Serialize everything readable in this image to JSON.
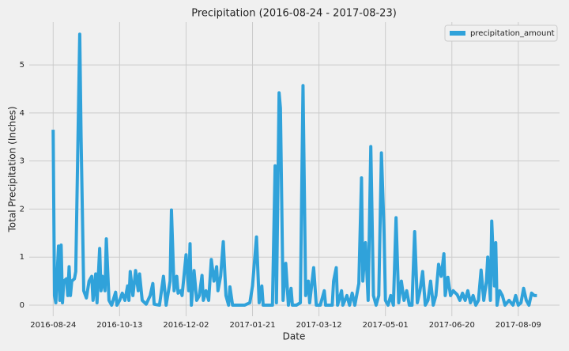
{
  "chart_data": {
    "type": "line",
    "title": "Precipitation (2016-08-24 - 2017-08-23)",
    "x_label": "Date",
    "y_label": "Total Precipitation (Inches)",
    "x": [
      "2016-08-24",
      "2016-08-25",
      "2016-08-26",
      "2016-08-28",
      "2016-08-29",
      "2016-08-30",
      "2016-08-31",
      "2016-09-01",
      "2016-09-03",
      "2016-09-04",
      "2016-09-05",
      "2016-09-06",
      "2016-09-07",
      "2016-09-09",
      "2016-09-10",
      "2016-09-13",
      "2016-09-14",
      "2016-09-16",
      "2016-09-18",
      "2016-09-20",
      "2016-09-22",
      "2016-09-23",
      "2016-09-25",
      "2016-09-26",
      "2016-09-28",
      "2016-09-29",
      "2016-09-30",
      "2016-10-02",
      "2016-10-03",
      "2016-10-05",
      "2016-10-07",
      "2016-10-10",
      "2016-10-11",
      "2016-10-13",
      "2016-10-15",
      "2016-10-17",
      "2016-10-19",
      "2016-10-20",
      "2016-10-21",
      "2016-10-23",
      "2016-10-24",
      "2016-10-25",
      "2016-10-27",
      "2016-10-28",
      "2016-10-30",
      "2016-11-02",
      "2016-11-05",
      "2016-11-07",
      "2016-11-08",
      "2016-11-12",
      "2016-11-15",
      "2016-11-17",
      "2016-11-20",
      "2016-11-21",
      "2016-11-23",
      "2016-11-25",
      "2016-11-26",
      "2016-11-28",
      "2016-11-29",
      "2016-12-02",
      "2016-12-04",
      "2016-12-05",
      "2016-12-06",
      "2016-12-08",
      "2016-12-10",
      "2016-12-12",
      "2016-12-14",
      "2016-12-15",
      "2016-12-17",
      "2016-12-19",
      "2016-12-21",
      "2016-12-23",
      "2016-12-25",
      "2016-12-26",
      "2016-12-28",
      "2016-12-30",
      "2017-01-01",
      "2017-01-03",
      "2017-01-04",
      "2017-01-06",
      "2017-01-09",
      "2017-01-15",
      "2017-01-19",
      "2017-01-21",
      "2017-01-24",
      "2017-01-26",
      "2017-01-28",
      "2017-01-29",
      "2017-02-02",
      "2017-02-05",
      "2017-02-07",
      "2017-02-08",
      "2017-02-10",
      "2017-02-11",
      "2017-02-13",
      "2017-02-15",
      "2017-02-17",
      "2017-02-19",
      "2017-02-20",
      "2017-02-23",
      "2017-02-26",
      "2017-02-28",
      "2017-03-02",
      "2017-03-04",
      "2017-03-05",
      "2017-03-08",
      "2017-03-10",
      "2017-03-13",
      "2017-03-16",
      "2017-03-17",
      "2017-03-22",
      "2017-03-23",
      "2017-03-25",
      "2017-03-26",
      "2017-03-29",
      "2017-03-30",
      "2017-04-02",
      "2017-04-04",
      "2017-04-06",
      "2017-04-08",
      "2017-04-11",
      "2017-04-13",
      "2017-04-14",
      "2017-04-16",
      "2017-04-18",
      "2017-04-20",
      "2017-04-22",
      "2017-04-24",
      "2017-04-26",
      "2017-04-28",
      "2017-04-30",
      "2017-05-01",
      "2017-05-03",
      "2017-05-05",
      "2017-05-07",
      "2017-05-09",
      "2017-05-11",
      "2017-05-13",
      "2017-05-15",
      "2017-05-17",
      "2017-05-19",
      "2017-05-21",
      "2017-05-23",
      "2017-05-25",
      "2017-05-27",
      "2017-05-29",
      "2017-05-31",
      "2017-06-02",
      "2017-06-04",
      "2017-06-06",
      "2017-06-08",
      "2017-06-10",
      "2017-06-12",
      "2017-06-14",
      "2017-06-15",
      "2017-06-17",
      "2017-06-19",
      "2017-06-21",
      "2017-06-24",
      "2017-06-26",
      "2017-06-28",
      "2017-06-30",
      "2017-07-02",
      "2017-07-04",
      "2017-07-06",
      "2017-07-08",
      "2017-07-10",
      "2017-07-12",
      "2017-07-14",
      "2017-07-16",
      "2017-07-17",
      "2017-07-19",
      "2017-07-20",
      "2017-07-22",
      "2017-07-23",
      "2017-07-24",
      "2017-07-26",
      "2017-07-28",
      "2017-07-30",
      "2017-08-02",
      "2017-08-05",
      "2017-08-07",
      "2017-08-09",
      "2017-08-11",
      "2017-08-13",
      "2017-08-15",
      "2017-08-17",
      "2017-08-19",
      "2017-08-21",
      "2017-08-23"
    ],
    "series": [
      {
        "name": "precipitation_amount",
        "color": "#30a2da",
        "values": [
          3.65,
          0.2,
          0.05,
          1.23,
          0.1,
          1.25,
          0.05,
          0.5,
          0.55,
          0.2,
          0.8,
          0.2,
          0.5,
          0.55,
          0.7,
          5.64,
          3.5,
          0.3,
          0.15,
          0.5,
          0.6,
          0.1,
          0.65,
          0.05,
          1.18,
          0.3,
          0.6,
          0.3,
          1.38,
          0.1,
          0.0,
          0.27,
          0.0,
          0.1,
          0.25,
          0.1,
          0.4,
          0.1,
          0.7,
          0.2,
          0.45,
          0.72,
          0.3,
          0.65,
          0.1,
          0.02,
          0.2,
          0.45,
          0.02,
          0.0,
          0.6,
          0.0,
          0.5,
          1.98,
          0.3,
          0.6,
          0.25,
          0.3,
          0.2,
          1.05,
          0.3,
          1.28,
          0.0,
          0.72,
          0.1,
          0.2,
          0.62,
          0.1,
          0.3,
          0.1,
          0.95,
          0.5,
          0.8,
          0.3,
          0.6,
          1.32,
          0.2,
          0.0,
          0.38,
          0.0,
          0.0,
          0.0,
          0.05,
          0.4,
          1.42,
          0.05,
          0.4,
          0.0,
          0.0,
          0.0,
          2.9,
          0.05,
          4.42,
          4.1,
          0.1,
          0.87,
          0.0,
          0.35,
          0.0,
          0.0,
          0.05,
          4.57,
          0.2,
          0.5,
          0.05,
          0.78,
          0.0,
          0.0,
          0.3,
          0.0,
          0.0,
          0.5,
          0.78,
          0.0,
          0.3,
          0.0,
          0.2,
          0.0,
          0.25,
          0.0,
          0.45,
          2.65,
          0.5,
          1.3,
          0.1,
          3.3,
          0.2,
          0.0,
          0.2,
          3.17,
          1.5,
          0.1,
          0.0,
          0.2,
          0.0,
          1.82,
          0.05,
          0.5,
          0.1,
          0.3,
          0.0,
          0.0,
          1.53,
          0.05,
          0.3,
          0.7,
          0.0,
          0.1,
          0.5,
          0.0,
          0.2,
          0.85,
          0.6,
          1.07,
          0.2,
          0.58,
          0.2,
          0.3,
          0.22,
          0.1,
          0.25,
          0.1,
          0.3,
          0.05,
          0.2,
          0.0,
          0.1,
          0.73,
          0.1,
          0.5,
          1.0,
          0.1,
          1.75,
          0.4,
          1.3,
          0.0,
          0.3,
          0.2,
          0.0,
          0.1,
          0.0,
          0.2,
          0.0,
          0.05,
          0.35,
          0.1,
          0.0,
          0.25,
          0.2,
          0.2
        ]
      }
    ],
    "xlim": [
      "2016-08-06",
      "2017-09-09"
    ],
    "xticks": [
      "2016-08-24",
      "2016-10-13",
      "2016-12-02",
      "2017-01-21",
      "2017-03-12",
      "2017-05-01",
      "2017-06-20",
      "2017-08-09"
    ],
    "ylim": [
      -0.23,
      5.89
    ],
    "yticks": [
      0,
      1,
      2,
      3,
      4,
      5
    ],
    "grid": true,
    "legend": "upper right"
  }
}
